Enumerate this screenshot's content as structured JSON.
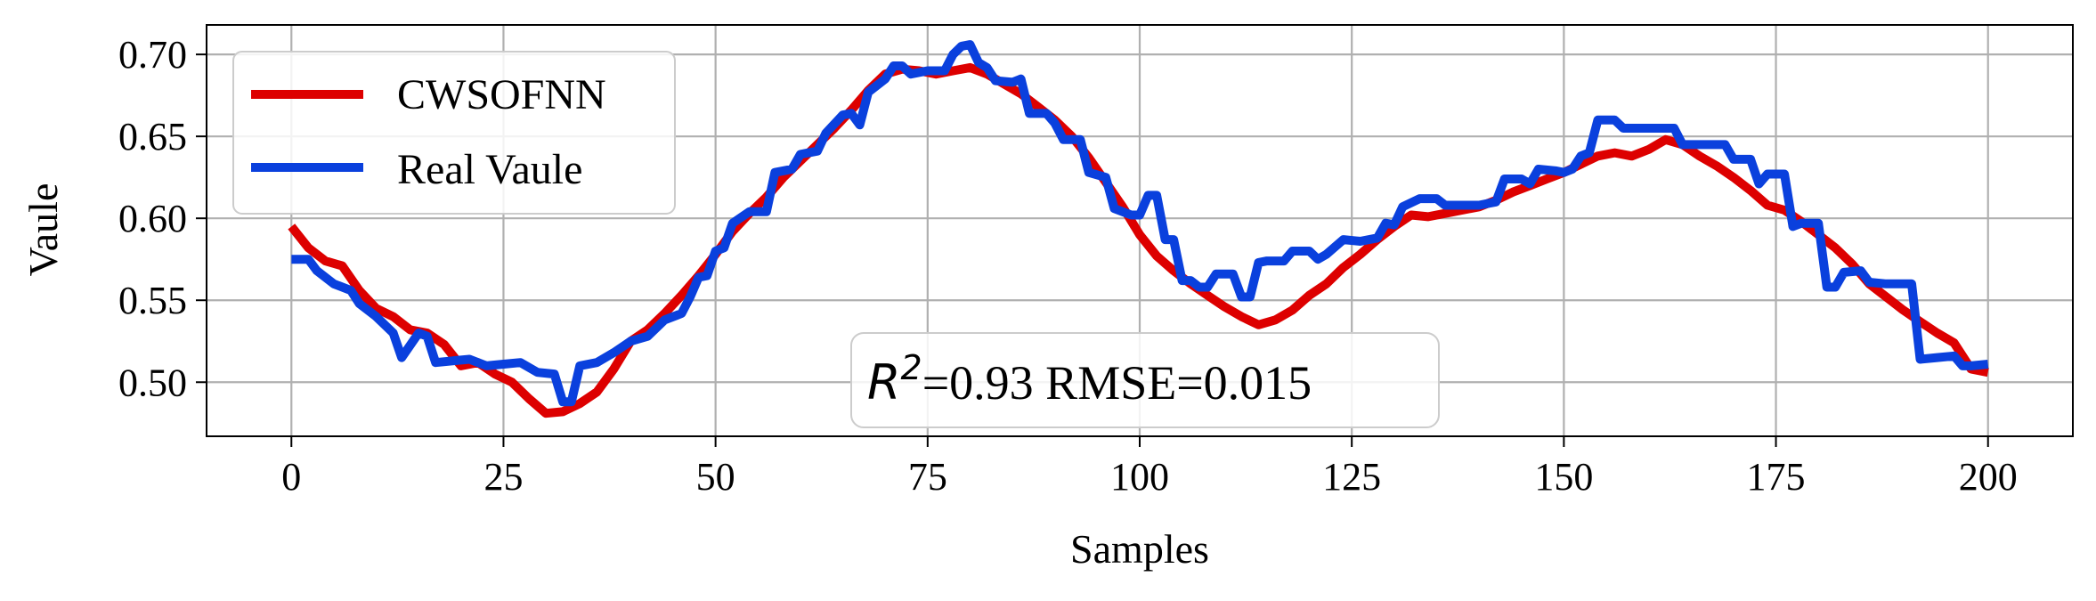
{
  "chart_data": {
    "type": "line",
    "xlabel": "Samples",
    "ylabel": "Vaule",
    "xlim": [
      -10,
      210
    ],
    "ylim": [
      0.467,
      0.718
    ],
    "x_ticks": [
      0,
      25,
      50,
      75,
      100,
      125,
      150,
      175,
      200
    ],
    "x_tick_labels": [
      "0",
      "25",
      "50",
      "75",
      "100",
      "125",
      "150",
      "175",
      "200"
    ],
    "y_ticks": [
      0.5,
      0.55,
      0.6,
      0.65,
      0.7
    ],
    "y_tick_labels": [
      "0.50",
      "0.55",
      "0.60",
      "0.65",
      "0.70"
    ],
    "grid": true,
    "legend_position": "top-left",
    "annotation": {
      "math": "R",
      "superscript": "2",
      "text": "=0.93 RMSE=0.015",
      "position": "bottom-center"
    },
    "series": [
      {
        "name": "CWSOFNN",
        "color": "#dd0000",
        "points": [
          [
            0,
            0.595
          ],
          [
            2,
            0.582
          ],
          [
            4,
            0.574
          ],
          [
            6,
            0.571
          ],
          [
            8,
            0.556
          ],
          [
            10,
            0.545
          ],
          [
            12,
            0.54
          ],
          [
            14,
            0.532
          ],
          [
            16,
            0.53
          ],
          [
            18,
            0.523
          ],
          [
            20,
            0.51
          ],
          [
            22,
            0.512
          ],
          [
            24,
            0.505
          ],
          [
            26,
            0.5
          ],
          [
            28,
            0.49
          ],
          [
            30,
            0.481
          ],
          [
            32,
            0.482
          ],
          [
            34,
            0.487
          ],
          [
            36,
            0.494
          ],
          [
            38,
            0.508
          ],
          [
            40,
            0.525
          ],
          [
            42,
            0.532
          ],
          [
            44,
            0.542
          ],
          [
            46,
            0.553
          ],
          [
            48,
            0.565
          ],
          [
            50,
            0.578
          ],
          [
            52,
            0.592
          ],
          [
            54,
            0.603
          ],
          [
            56,
            0.613
          ],
          [
            58,
            0.625
          ],
          [
            60,
            0.635
          ],
          [
            62,
            0.645
          ],
          [
            64,
            0.655
          ],
          [
            66,
            0.666
          ],
          [
            68,
            0.678
          ],
          [
            70,
            0.688
          ],
          [
            72,
            0.691
          ],
          [
            74,
            0.69
          ],
          [
            76,
            0.688
          ],
          [
            78,
            0.69
          ],
          [
            80,
            0.692
          ],
          [
            82,
            0.688
          ],
          [
            84,
            0.682
          ],
          [
            86,
            0.676
          ],
          [
            88,
            0.668
          ],
          [
            90,
            0.66
          ],
          [
            92,
            0.65
          ],
          [
            94,
            0.637
          ],
          [
            96,
            0.622
          ],
          [
            98,
            0.607
          ],
          [
            100,
            0.59
          ],
          [
            102,
            0.577
          ],
          [
            104,
            0.568
          ],
          [
            106,
            0.56
          ],
          [
            108,
            0.553
          ],
          [
            110,
            0.546
          ],
          [
            112,
            0.54
          ],
          [
            114,
            0.535
          ],
          [
            116,
            0.538
          ],
          [
            118,
            0.544
          ],
          [
            120,
            0.553
          ],
          [
            122,
            0.56
          ],
          [
            124,
            0.57
          ],
          [
            126,
            0.578
          ],
          [
            128,
            0.587
          ],
          [
            130,
            0.595
          ],
          [
            132,
            0.602
          ],
          [
            134,
            0.601
          ],
          [
            136,
            0.603
          ],
          [
            138,
            0.605
          ],
          [
            140,
            0.607
          ],
          [
            142,
            0.611
          ],
          [
            144,
            0.616
          ],
          [
            146,
            0.62
          ],
          [
            148,
            0.624
          ],
          [
            150,
            0.628
          ],
          [
            152,
            0.633
          ],
          [
            154,
            0.638
          ],
          [
            156,
            0.64
          ],
          [
            158,
            0.638
          ],
          [
            160,
            0.642
          ],
          [
            162,
            0.648
          ],
          [
            164,
            0.645
          ],
          [
            166,
            0.638
          ],
          [
            168,
            0.632
          ],
          [
            170,
            0.625
          ],
          [
            172,
            0.617
          ],
          [
            174,
            0.608
          ],
          [
            176,
            0.605
          ],
          [
            178,
            0.598
          ],
          [
            180,
            0.59
          ],
          [
            182,
            0.582
          ],
          [
            184,
            0.572
          ],
          [
            186,
            0.56
          ],
          [
            188,
            0.552
          ],
          [
            190,
            0.544
          ],
          [
            192,
            0.537
          ],
          [
            194,
            0.53
          ],
          [
            196,
            0.524
          ],
          [
            198,
            0.508
          ],
          [
            200,
            0.506
          ]
        ]
      },
      {
        "name": "Real Vaule",
        "color": "#0a40dd",
        "points": [
          [
            0,
            0.575
          ],
          [
            2,
            0.575
          ],
          [
            3,
            0.568
          ],
          [
            5,
            0.56
          ],
          [
            7,
            0.556
          ],
          [
            8,
            0.548
          ],
          [
            10,
            0.54
          ],
          [
            12,
            0.53
          ],
          [
            13,
            0.515
          ],
          [
            15,
            0.53
          ],
          [
            16,
            0.528
          ],
          [
            17,
            0.512
          ],
          [
            19,
            0.513
          ],
          [
            21,
            0.514
          ],
          [
            23,
            0.51
          ],
          [
            25,
            0.511
          ],
          [
            27,
            0.512
          ],
          [
            29,
            0.506
          ],
          [
            31,
            0.505
          ],
          [
            32,
            0.488
          ],
          [
            33,
            0.488
          ],
          [
            34,
            0.51
          ],
          [
            36,
            0.512
          ],
          [
            38,
            0.518
          ],
          [
            40,
            0.525
          ],
          [
            42,
            0.528
          ],
          [
            44,
            0.538
          ],
          [
            46,
            0.542
          ],
          [
            47,
            0.552
          ],
          [
            48,
            0.564
          ],
          [
            49,
            0.565
          ],
          [
            50,
            0.58
          ],
          [
            51,
            0.582
          ],
          [
            52,
            0.597
          ],
          [
            54,
            0.604
          ],
          [
            56,
            0.604
          ],
          [
            57,
            0.628
          ],
          [
            59,
            0.63
          ],
          [
            60,
            0.639
          ],
          [
            62,
            0.641
          ],
          [
            63,
            0.652
          ],
          [
            65,
            0.663
          ],
          [
            66,
            0.664
          ],
          [
            67,
            0.657
          ],
          [
            68,
            0.677
          ],
          [
            70,
            0.685
          ],
          [
            71,
            0.693
          ],
          [
            72,
            0.693
          ],
          [
            73,
            0.688
          ],
          [
            75,
            0.69
          ],
          [
            77,
            0.69
          ],
          [
            78,
            0.7
          ],
          [
            79,
            0.705
          ],
          [
            80,
            0.706
          ],
          [
            81,
            0.695
          ],
          [
            82,
            0.692
          ],
          [
            83,
            0.684
          ],
          [
            85,
            0.683
          ],
          [
            86,
            0.685
          ],
          [
            87,
            0.664
          ],
          [
            89,
            0.664
          ],
          [
            90,
            0.658
          ],
          [
            91,
            0.648
          ],
          [
            93,
            0.648
          ],
          [
            94,
            0.628
          ],
          [
            96,
            0.625
          ],
          [
            97,
            0.606
          ],
          [
            99,
            0.602
          ],
          [
            100,
            0.602
          ],
          [
            101,
            0.614
          ],
          [
            102,
            0.614
          ],
          [
            103,
            0.587
          ],
          [
            104,
            0.587
          ],
          [
            105,
            0.562
          ],
          [
            106,
            0.562
          ],
          [
            107,
            0.558
          ],
          [
            108,
            0.558
          ],
          [
            109,
            0.566
          ],
          [
            111,
            0.566
          ],
          [
            112,
            0.552
          ],
          [
            113,
            0.552
          ],
          [
            114,
            0.573
          ],
          [
            115,
            0.574
          ],
          [
            117,
            0.574
          ],
          [
            118,
            0.58
          ],
          [
            120,
            0.58
          ],
          [
            121,
            0.575
          ],
          [
            122,
            0.578
          ],
          [
            124,
            0.587
          ],
          [
            126,
            0.586
          ],
          [
            128,
            0.588
          ],
          [
            129,
            0.597
          ],
          [
            130,
            0.596
          ],
          [
            131,
            0.607
          ],
          [
            133,
            0.612
          ],
          [
            135,
            0.612
          ],
          [
            136,
            0.608
          ],
          [
            138,
            0.608
          ],
          [
            140,
            0.608
          ],
          [
            141,
            0.609
          ],
          [
            142,
            0.61
          ],
          [
            143,
            0.624
          ],
          [
            145,
            0.624
          ],
          [
            146,
            0.621
          ],
          [
            147,
            0.63
          ],
          [
            149,
            0.629
          ],
          [
            150,
            0.628
          ],
          [
            151,
            0.63
          ],
          [
            152,
            0.638
          ],
          [
            153,
            0.64
          ],
          [
            154,
            0.66
          ],
          [
            156,
            0.66
          ],
          [
            157,
            0.655
          ],
          [
            160,
            0.655
          ],
          [
            163,
            0.655
          ],
          [
            164,
            0.645
          ],
          [
            167,
            0.645
          ],
          [
            169,
            0.645
          ],
          [
            170,
            0.636
          ],
          [
            172,
            0.636
          ],
          [
            173,
            0.621
          ],
          [
            174,
            0.627
          ],
          [
            176,
            0.627
          ],
          [
            177,
            0.595
          ],
          [
            178,
            0.597
          ],
          [
            180,
            0.597
          ],
          [
            181,
            0.558
          ],
          [
            182,
            0.558
          ],
          [
            183,
            0.567
          ],
          [
            185,
            0.568
          ],
          [
            186,
            0.561
          ],
          [
            188,
            0.56
          ],
          [
            191,
            0.56
          ],
          [
            192,
            0.514
          ],
          [
            194,
            0.515
          ],
          [
            196,
            0.516
          ],
          [
            197,
            0.51
          ],
          [
            198,
            0.51
          ],
          [
            200,
            0.511
          ]
        ]
      }
    ]
  }
}
